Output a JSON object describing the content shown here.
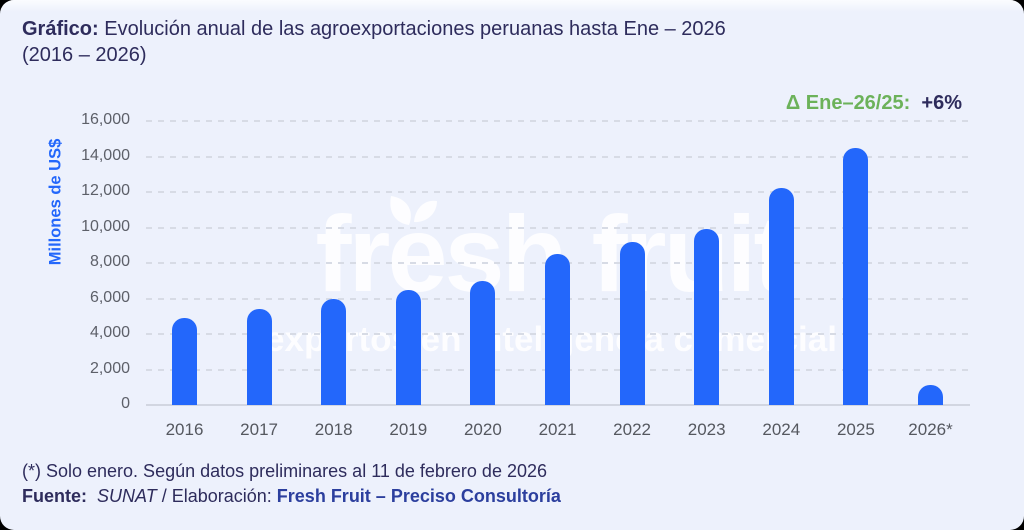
{
  "header": {
    "title_prefix": "Gráfico:",
    "title_rest": " Evolución anual de las agroexportaciones peruanas hasta Ene – 2026",
    "title_line2": "(2016 – 2026)"
  },
  "annotation": {
    "delta_label": "Δ Ene–26/25:",
    "delta_value": "+6%"
  },
  "watermark": {
    "brand": "fresh fruit",
    "tagline": "expertos en inteligencia comercial"
  },
  "chart_data": {
    "type": "bar",
    "title": "Evolución anual de las agroexportaciones peruanas hasta Ene – 2026 (2016 – 2026)",
    "ylabel": "Millones de US$",
    "xlabel": "",
    "ylim": [
      0,
      16000
    ],
    "ytick_interval": 2000,
    "ytick_labels": [
      "0",
      "2,000",
      "4,000",
      "6,000",
      "8,000",
      "10,000",
      "12,000",
      "14,000",
      "16,000"
    ],
    "grid": "horizontal-dashed",
    "legend": "none",
    "categories": [
      "2016",
      "2017",
      "2018",
      "2019",
      "2020",
      "2021",
      "2022",
      "2023",
      "2024",
      "2025",
      "2026*"
    ],
    "values": [
      4900,
      5400,
      6000,
      6500,
      7000,
      8500,
      9200,
      9900,
      12200,
      14500,
      1150
    ],
    "annotation": "Δ Ene–26/25: +6%",
    "bar_color": "#2367fb",
    "grid_color": "#d7dbe5",
    "tick_color": "#5d6069",
    "accent_green": "#6cb25a",
    "accent_navy": "#2e2c5c",
    "background": "#edf1fc"
  },
  "footer": {
    "note": "(*) Solo enero. Según datos preliminares al 11 de febrero de 2026",
    "source_label": "Fuente:",
    "source_name": "SUNAT",
    "separator": " / ",
    "elaboration_label": "Elaboración: ",
    "elaboration_name": "Fresh Fruit – Preciso Consultoría"
  }
}
